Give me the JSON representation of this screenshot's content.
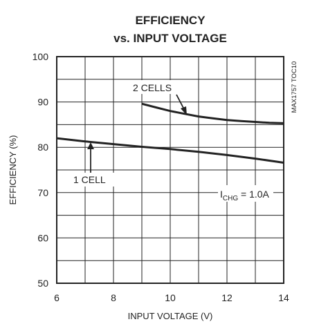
{
  "chart_data": {
    "type": "line",
    "title_lines": [
      "EFFICIENCY",
      "vs. INPUT VOLTAGE"
    ],
    "xlabel": "INPUT VOLTAGE (V)",
    "ylabel": "EFFICIENCY (%)",
    "xlim": [
      6,
      14
    ],
    "ylim": [
      50,
      100
    ],
    "x_ticks": [
      6,
      8,
      10,
      12,
      14
    ],
    "y_ticks": [
      50,
      60,
      70,
      80,
      90,
      100
    ],
    "grid": true,
    "series": [
      {
        "name": "2 CELLS",
        "x": [
          9.0,
          9.5,
          10.0,
          10.5,
          11.0,
          11.5,
          12.0,
          12.5,
          13.0,
          13.5,
          14.0
        ],
        "y": [
          89.6,
          88.8,
          88.0,
          87.4,
          86.8,
          86.4,
          86.0,
          85.8,
          85.6,
          85.4,
          85.3
        ]
      },
      {
        "name": "1 CELL",
        "x": [
          6,
          7,
          8,
          9,
          10,
          11,
          12,
          13,
          14
        ],
        "y": [
          82.0,
          81.3,
          80.7,
          80.1,
          79.6,
          79.0,
          78.3,
          77.5,
          76.6
        ]
      }
    ],
    "annotations": {
      "condition_base": "I",
      "condition_sub": "CHG",
      "condition_rest": " = 1.0A",
      "part_code": "MAX1757 TOC10"
    }
  }
}
